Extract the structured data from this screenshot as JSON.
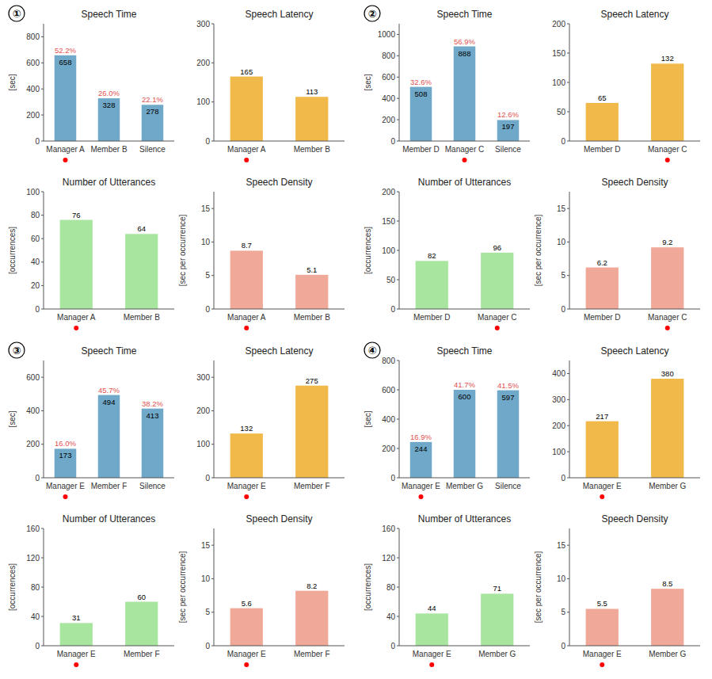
{
  "group_labels": [
    "①",
    "②",
    "③",
    "④"
  ],
  "chart_data": [
    {
      "type": "bar",
      "title": "Speech Time",
      "y_label": "[sec]",
      "categories": [
        "Manager A",
        "Member B",
        "Silence"
      ],
      "values": [
        658,
        328,
        278
      ],
      "color": "#6fa8c8",
      "ylim": [
        0,
        900
      ],
      "yticks": [
        0,
        200,
        400,
        600,
        800
      ],
      "data_labels": true,
      "shares": [
        52.2,
        26.0,
        22.1
      ],
      "share_labels": [
        "52.2%",
        "26.0%",
        "22.1%"
      ],
      "share_color": "#e05050",
      "manager_index": 0,
      "manager_color": "red"
    },
    {
      "type": "bar",
      "title": "Speech Latency",
      "categories": [
        "Manager A",
        "Member B"
      ],
      "values": [
        165,
        113
      ],
      "color": "#f0b94a",
      "ylim": [
        0,
        300
      ],
      "yticks": [
        0,
        100,
        200,
        300
      ],
      "data_labels": true,
      "manager_index": 0,
      "manager_color": "red"
    },
    {
      "type": "bar",
      "title": "Number of Utterances",
      "y_label": "[occurrences]",
      "categories": [
        "Manager A",
        "Member B"
      ],
      "values": [
        76,
        64
      ],
      "color": "#a8e6a0",
      "ylim": [
        0,
        100
      ],
      "yticks": [
        0,
        20,
        40,
        60,
        80,
        100
      ],
      "data_labels": true,
      "manager_index": 0,
      "manager_color": "red"
    },
    {
      "type": "bar",
      "title": "Speech Density",
      "y_label": "[sec per occurrence]",
      "categories": [
        "Manager A",
        "Member B"
      ],
      "values": [
        8.7,
        5.1
      ],
      "color": "#f0a898",
      "ylim": [
        0,
        17.5
      ],
      "yticks": [
        0,
        5,
        10,
        15
      ],
      "data_labels": true,
      "manager_index": 0,
      "manager_color": "red"
    },
    {
      "type": "bar",
      "title": "Speech Time",
      "y_label": "[sec]",
      "categories": [
        "Member D",
        "Manager C",
        "Silence"
      ],
      "values": [
        508,
        888,
        197
      ],
      "color": "#6fa8c8",
      "ylim": [
        0,
        1100
      ],
      "yticks": [
        0,
        200,
        400,
        600,
        800,
        1000
      ],
      "data_labels": true,
      "shares": [
        32.6,
        56.9,
        12.6
      ],
      "share_labels": [
        "32.6%",
        "56.9%",
        "12.6%"
      ],
      "share_color": "#e05050",
      "manager_index": 1,
      "manager_color": "red"
    },
    {
      "type": "bar",
      "title": "Speech Latency",
      "categories": [
        "Member D",
        "Manager C"
      ],
      "values": [
        65,
        132
      ],
      "color": "#f0b94a",
      "ylim": [
        0,
        200
      ],
      "yticks": [
        0,
        50,
        100,
        150,
        200
      ],
      "data_labels": true,
      "manager_index": 1,
      "manager_color": "red"
    },
    {
      "type": "bar",
      "title": "Number of Utterances",
      "y_label": "[occurrences]",
      "categories": [
        "Member D",
        "Manager C"
      ],
      "values": [
        82,
        96
      ],
      "color": "#a8e6a0",
      "ylim": [
        0,
        200
      ],
      "yticks": [
        0,
        50,
        100,
        150,
        200
      ],
      "data_labels": true,
      "manager_index": 1,
      "manager_color": "red"
    },
    {
      "type": "bar",
      "title": "Speech Density",
      "y_label": "[sec per occurrence]",
      "categories": [
        "Member D",
        "Manager C"
      ],
      "values": [
        6.2,
        9.2
      ],
      "color": "#f0a898",
      "ylim": [
        0,
        17.5
      ],
      "yticks": [
        0,
        5,
        10,
        15
      ],
      "data_labels": true,
      "manager_index": 1,
      "manager_color": "red"
    },
    {
      "type": "bar",
      "title": "Speech Time",
      "y_label": "[sec]",
      "categories": [
        "Manager E",
        "Member F",
        "Silence"
      ],
      "values": [
        173,
        494,
        413
      ],
      "color": "#6fa8c8",
      "ylim": [
        0,
        700
      ],
      "yticks": [
        0,
        200,
        400,
        600
      ],
      "data_labels": true,
      "shares": [
        16.0,
        45.7,
        38.2
      ],
      "share_labels": [
        "16.0%",
        "45.7%",
        "38.2%"
      ],
      "share_color": "#e05050",
      "manager_index": 0,
      "manager_color": "red"
    },
    {
      "type": "bar",
      "title": "Speech Latency",
      "categories": [
        "Manager E",
        "Member F"
      ],
      "values": [
        132,
        275
      ],
      "color": "#f0b94a",
      "ylim": [
        0,
        350
      ],
      "yticks": [
        0,
        100,
        200,
        300
      ],
      "data_labels": true,
      "manager_index": 0,
      "manager_color": "red"
    },
    {
      "type": "bar",
      "title": "Number of Utterances",
      "y_label": "[occurrences]",
      "categories": [
        "Manager E",
        "Member F"
      ],
      "values": [
        31,
        60
      ],
      "color": "#a8e6a0",
      "ylim": [
        0,
        160
      ],
      "yticks": [
        0,
        40,
        80,
        120,
        160
      ],
      "data_labels": true,
      "manager_index": 0,
      "manager_color": "red"
    },
    {
      "type": "bar",
      "title": "Speech Density",
      "y_label": "[sec per occurrence]",
      "categories": [
        "Manager E",
        "Member F"
      ],
      "values": [
        5.6,
        8.2
      ],
      "color": "#f0a898",
      "ylim": [
        0,
        17.5
      ],
      "yticks": [
        0,
        5,
        10,
        15
      ],
      "data_labels": true,
      "manager_index": 0,
      "manager_color": "red"
    },
    {
      "type": "bar",
      "title": "Speech Time",
      "y_label": "[sec]",
      "categories": [
        "Manager E",
        "Member G",
        "Silence"
      ],
      "values": [
        244,
        600,
        597
      ],
      "color": "#6fa8c8",
      "ylim": [
        0,
        800
      ],
      "yticks": [
        0,
        200,
        400,
        600,
        800
      ],
      "data_labels": true,
      "shares": [
        16.9,
        41.7,
        41.5
      ],
      "share_labels": [
        "16.9%",
        "41.7%",
        "41.5%"
      ],
      "share_color": "#e05050",
      "manager_index": 0,
      "manager_color": "red"
    },
    {
      "type": "bar",
      "title": "Speech Latency",
      "categories": [
        "Manager E",
        "Member G"
      ],
      "values": [
        217,
        380
      ],
      "color": "#f0b94a",
      "ylim": [
        0,
        450
      ],
      "yticks": [
        0,
        100,
        200,
        300,
        400
      ],
      "data_labels": true,
      "manager_index": 0,
      "manager_color": "red"
    },
    {
      "type": "bar",
      "title": "Number of Utterances",
      "y_label": "[occurrences]",
      "categories": [
        "Manager E",
        "Member G"
      ],
      "values": [
        44,
        71
      ],
      "color": "#a8e6a0",
      "ylim": [
        0,
        160
      ],
      "yticks": [
        0,
        40,
        80,
        120,
        160
      ],
      "data_labels": true,
      "manager_index": 0,
      "manager_color": "red"
    },
    {
      "type": "bar",
      "title": "Speech Density",
      "y_label": "[sec per occurrence]",
      "categories": [
        "Manager E",
        "Member G"
      ],
      "values": [
        5.5,
        8.5
      ],
      "color": "#f0a898",
      "ylim": [
        0,
        17.5
      ],
      "yticks": [
        0,
        5,
        10,
        15
      ],
      "data_labels": true,
      "manager_index": 0,
      "manager_color": "red"
    }
  ]
}
